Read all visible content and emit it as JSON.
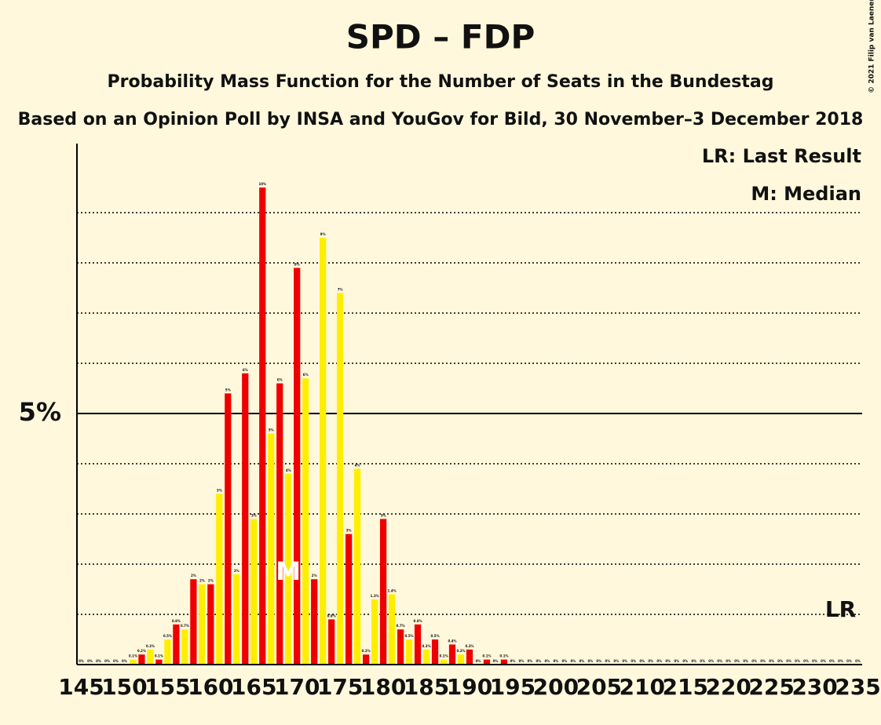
{
  "chart_data": {
    "type": "bar",
    "title": "SPD – FDP",
    "subtitle": "Probability Mass Function for the Number of Seats in the Bundestag",
    "subtitle2": "Based on an Opinion Poll by INSA and YouGov for Bild, 30 November–3 December 2018",
    "copyright": "© 2021 Filip van Laenen",
    "x": [
      145,
      146,
      147,
      148,
      149,
      150,
      151,
      152,
      153,
      154,
      155,
      156,
      157,
      158,
      159,
      160,
      161,
      162,
      163,
      164,
      165,
      166,
      167,
      168,
      169,
      170,
      171,
      172,
      173,
      174,
      175,
      176,
      177,
      178,
      179,
      180,
      181,
      182,
      183,
      184,
      185,
      186,
      187,
      188,
      189,
      190,
      191,
      192,
      193,
      194,
      195,
      196,
      197,
      198,
      199,
      200,
      201,
      202,
      203,
      204,
      205,
      206,
      207,
      208,
      209,
      210,
      211,
      212,
      213,
      214,
      215,
      216,
      217,
      218,
      219,
      220,
      221,
      222,
      223,
      224,
      225,
      226,
      227,
      228,
      229,
      230,
      231,
      232,
      233,
      234,
      235
    ],
    "values": [
      0,
      0,
      0,
      0,
      0,
      0,
      0.1,
      0.2,
      0.3,
      0.1,
      0.5,
      0.8,
      0.7,
      1.7,
      1.6,
      1.6,
      3.4,
      5.4,
      1.8,
      5.8,
      2.9,
      9.5,
      4.6,
      5.6,
      3.8,
      7.9,
      5.7,
      1.7,
      8.5,
      0.9,
      7.4,
      2.6,
      3.9,
      0.2,
      1.3,
      2.9,
      1.4,
      0.7,
      0.5,
      0.8,
      0.3,
      0.5,
      0.1,
      0.4,
      0.2,
      0.3,
      0,
      0.1,
      0,
      0.1,
      0,
      0,
      0,
      0,
      0,
      0,
      0,
      0,
      0,
      0,
      0,
      0,
      0,
      0,
      0,
      0,
      0,
      0,
      0,
      0,
      0,
      0,
      0,
      0,
      0,
      0,
      0,
      0,
      0,
      0,
      0,
      0,
      0,
      0,
      0,
      0,
      0,
      0,
      0,
      0,
      0
    ],
    "value_labels": [
      "0%",
      "0%",
      "0%",
      "0%",
      "0%",
      "0%",
      "0.1%",
      "0.2%",
      "0.3%",
      "0.1%",
      "0.5%",
      "0.8%",
      "0.7%",
      "2%",
      "2%",
      "2%",
      "3%",
      "5%",
      "2%",
      "6%",
      "3%",
      "10%",
      "5%",
      "6%",
      "4%",
      "8%",
      "6%",
      "2%",
      "9%",
      "0.9%",
      "7%",
      "3%",
      "4%",
      "0.2%",
      "1.3%",
      "3%",
      "1.4%",
      "0.7%",
      "0.5%",
      "0.8%",
      "0.3%",
      "0.5%",
      "0.1%",
      "0.4%",
      "0.2%",
      "0.3%",
      "0%",
      "0.1%",
      "0%",
      "0.1%",
      "0%",
      "0%",
      "0%",
      "0%",
      "0%",
      "0%",
      "0%",
      "0%",
      "0%",
      "0%",
      "0%",
      "0%",
      "0%",
      "0%",
      "0%",
      "0%",
      "0%",
      "0%",
      "0%",
      "0%",
      "0%",
      "0%",
      "0%",
      "0%",
      "0%",
      "0%",
      "0%",
      "0%",
      "0%",
      "0%",
      "0%",
      "0%",
      "0%",
      "0%",
      "0%",
      "0%",
      "0%",
      "0%",
      "0%",
      "0%",
      "0%"
    ],
    "bar_colors": [
      "#ffee00",
      "#ee0000"
    ],
    "xlim": [
      144.5,
      235.5
    ],
    "xticks": [
      145,
      150,
      155,
      160,
      165,
      170,
      175,
      180,
      185,
      190,
      195,
      200,
      205,
      210,
      215,
      220,
      225,
      230,
      235
    ],
    "ylim": [
      0,
      10.375
    ],
    "yticks": [
      {
        "value": 5,
        "label": "5%"
      }
    ],
    "grid": [
      1,
      2,
      3,
      4,
      6,
      7,
      8,
      9
    ],
    "median": {
      "label": "M",
      "x": 169
    },
    "last_result": {
      "label": "LR",
      "x": 233
    },
    "legend": [
      "LR: Last Result",
      "M: Median"
    ]
  }
}
